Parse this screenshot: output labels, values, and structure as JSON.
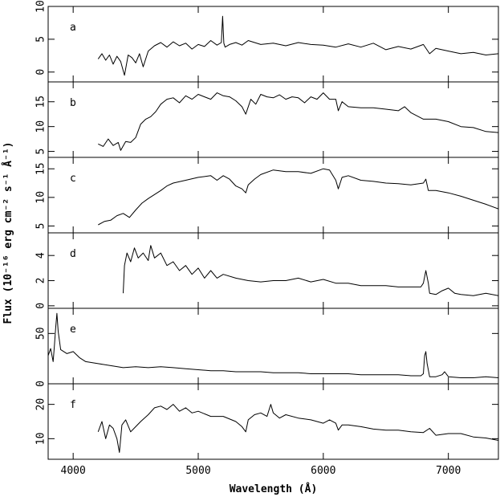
{
  "chart_data": {
    "type": "line",
    "xlabel": "Wavelength (Å)",
    "ylabel": "Flux (10⁻¹⁶ erg cm⁻² s⁻¹ Å⁻¹)",
    "xlim": [
      3800,
      7400
    ],
    "xticks": [
      {
        "value": 4000,
        "label": "4000"
      },
      {
        "value": 5000,
        "label": "5000"
      },
      {
        "value": 6000,
        "label": "6000"
      },
      {
        "value": 7000,
        "label": "7000"
      }
    ],
    "panels": [
      {
        "label": "a",
        "ylim": [
          -1.5,
          10
        ],
        "yticks": [
          {
            "value": 0,
            "label": "0"
          },
          {
            "value": 5,
            "label": "5"
          },
          {
            "value": 10,
            "label": "10"
          }
        ],
        "x": [
          4200,
          4230,
          4260,
          4290,
          4320,
          4350,
          4380,
          4410,
          4440,
          4470,
          4500,
          4530,
          4560,
          4600,
          4650,
          4700,
          4750,
          4800,
          4850,
          4900,
          4950,
          5000,
          5050,
          5100,
          5150,
          5185,
          5195,
          5205,
          5215,
          5250,
          5300,
          5350,
          5400,
          5500,
          5600,
          5700,
          5800,
          5900,
          6000,
          6100,
          6200,
          6300,
          6400,
          6500,
          6600,
          6700,
          6800,
          6850,
          6900,
          7000,
          7100,
          7200,
          7300,
          7400
        ],
        "y": [
          2,
          2.8,
          1.8,
          2.6,
          1.2,
          2.4,
          1.6,
          -0.5,
          2.6,
          2.2,
          1.4,
          2.8,
          0.8,
          3.2,
          4,
          4.5,
          3.8,
          4.6,
          4,
          4.4,
          3.5,
          4.2,
          3.9,
          4.8,
          4.1,
          4.5,
          8.5,
          4.4,
          3.8,
          4.2,
          4.5,
          4.1,
          4.8,
          4.2,
          4.4,
          4,
          4.5,
          4.2,
          4.1,
          3.8,
          4.3,
          3.8,
          4.4,
          3.4,
          3.9,
          3.5,
          4.2,
          2.8,
          3.6,
          3.2,
          2.8,
          3,
          2.6,
          2.8
        ]
      },
      {
        "label": "b",
        "ylim": [
          3.8,
          19
        ],
        "yticks": [
          {
            "value": 5,
            "label": "5"
          },
          {
            "value": 10,
            "label": "10"
          },
          {
            "value": 15,
            "label": "15"
          }
        ],
        "x": [
          4200,
          4240,
          4280,
          4320,
          4360,
          4380,
          4420,
          4460,
          4500,
          4540,
          4580,
          4620,
          4660,
          4700,
          4750,
          4800,
          4850,
          4900,
          4950,
          5000,
          5050,
          5100,
          5150,
          5200,
          5250,
          5300,
          5350,
          5380,
          5420,
          5460,
          5500,
          5550,
          5600,
          5650,
          5700,
          5750,
          5800,
          5850,
          5900,
          5950,
          6000,
          6050,
          6100,
          6120,
          6150,
          6200,
          6300,
          6400,
          6500,
          6600,
          6650,
          6700,
          6800,
          6900,
          7000,
          7100,
          7200,
          7300,
          7400
        ],
        "y": [
          6.5,
          6,
          7.5,
          6.2,
          6.8,
          5.2,
          7,
          6.8,
          7.8,
          10.5,
          11.5,
          12,
          13,
          14.5,
          15.5,
          15.8,
          14.8,
          16.2,
          15.5,
          16.5,
          16,
          15.5,
          16.8,
          16.2,
          16,
          15.2,
          14,
          12.5,
          15.5,
          14.5,
          16.5,
          16,
          15.8,
          16.4,
          15.5,
          16,
          15.8,
          14.8,
          16,
          15.5,
          16.8,
          15.5,
          15.5,
          13.2,
          15,
          14,
          13.8,
          13.8,
          13.5,
          13.2,
          14,
          12.8,
          11.5,
          11.5,
          11,
          10,
          9.8,
          9,
          8.8
        ]
      },
      {
        "label": "c",
        "ylim": [
          3.8,
          17
        ],
        "yticks": [
          {
            "value": 5,
            "label": "5"
          },
          {
            "value": 10,
            "label": "10"
          },
          {
            "value": 15,
            "label": "15"
          }
        ],
        "x": [
          4200,
          4250,
          4300,
          4350,
          4400,
          4450,
          4500,
          4550,
          4600,
          4650,
          4700,
          4750,
          4800,
          4900,
          5000,
          5100,
          5150,
          5200,
          5250,
          5300,
          5350,
          5380,
          5400,
          5450,
          5500,
          5600,
          5700,
          5800,
          5900,
          6000,
          6050,
          6100,
          6120,
          6150,
          6200,
          6300,
          6400,
          6500,
          6600,
          6700,
          6800,
          6820,
          6840,
          6900,
          7000,
          7100,
          7200,
          7300,
          7400
        ],
        "y": [
          5.2,
          5.8,
          6,
          6.8,
          7.2,
          6.5,
          7.8,
          9,
          9.8,
          10.5,
          11.2,
          12,
          12.5,
          13,
          13.5,
          13.8,
          13,
          13.8,
          13.2,
          12,
          11.5,
          10.8,
          12.2,
          13.2,
          14,
          14.8,
          14.5,
          14.5,
          14.2,
          15,
          14.8,
          13,
          11.5,
          13.5,
          13.8,
          13,
          12.8,
          12.5,
          12.4,
          12.2,
          12.5,
          13.2,
          11.2,
          11.2,
          10.8,
          10.2,
          9.5,
          8.8,
          8
        ]
      },
      {
        "label": "d",
        "ylim": [
          -0.2,
          5.8
        ],
        "yticks": [
          {
            "value": 0,
            "label": "0"
          },
          {
            "value": 2,
            "label": "2"
          },
          {
            "value": 4,
            "label": "4"
          }
        ],
        "x": [
          4400,
          4410,
          4430,
          4460,
          4490,
          4520,
          4560,
          4600,
          4620,
          4650,
          4700,
          4750,
          4800,
          4850,
          4900,
          4950,
          5000,
          5050,
          5100,
          5150,
          5200,
          5300,
          5400,
          5500,
          5600,
          5700,
          5800,
          5900,
          6000,
          6100,
          6200,
          6300,
          6400,
          6500,
          6600,
          6700,
          6780,
          6800,
          6820,
          6840,
          6850,
          6900,
          6950,
          7000,
          7050,
          7100,
          7200,
          7300,
          7400
        ],
        "y": [
          1,
          3.2,
          4.2,
          3.5,
          4.6,
          3.8,
          4.2,
          3.6,
          4.8,
          3.8,
          4.2,
          3.2,
          3.5,
          2.8,
          3.2,
          2.5,
          3,
          2.2,
          2.8,
          2.2,
          2.5,
          2.2,
          2,
          1.9,
          2,
          2,
          2.2,
          1.9,
          2.1,
          1.8,
          1.8,
          1.6,
          1.6,
          1.6,
          1.5,
          1.5,
          1.5,
          1.8,
          2.8,
          1.8,
          1,
          0.9,
          1.2,
          1.4,
          1,
          0.9,
          0.8,
          1,
          0.8
        ]
      },
      {
        "label": "e",
        "ylim": [
          0,
          75
        ],
        "yticks": [
          {
            "value": 0,
            "label": "0"
          },
          {
            "value": 50,
            "label": "50"
          }
        ],
        "x": [
          3800,
          3820,
          3840,
          3850,
          3860,
          3870,
          3880,
          3900,
          3950,
          4000,
          4050,
          4100,
          4200,
          4300,
          4400,
          4500,
          4600,
          4700,
          4800,
          4900,
          5000,
          5100,
          5200,
          5300,
          5400,
          5500,
          5600,
          5700,
          5800,
          5900,
          6000,
          6100,
          6200,
          6300,
          6400,
          6500,
          6600,
          6700,
          6780,
          6800,
          6810,
          6820,
          6830,
          6850,
          6900,
          6950,
          6970,
          7000,
          7100,
          7200,
          7300,
          7400
        ],
        "y": [
          28,
          35,
          22,
          38,
          55,
          70,
          52,
          34,
          30,
          32,
          26,
          22,
          20,
          18,
          16,
          17,
          16,
          17,
          16,
          15,
          14,
          13,
          13,
          12,
          12,
          12,
          11,
          11,
          11,
          10,
          10,
          10,
          10,
          9,
          9,
          9,
          9,
          8,
          8,
          10,
          28,
          32,
          20,
          7,
          7,
          9,
          12,
          7,
          6,
          6,
          7,
          6
        ]
      },
      {
        "label": "f",
        "ylim": [
          4,
          26
        ],
        "yticks": [
          {
            "value": 10,
            "label": "10"
          },
          {
            "value": 20,
            "label": "20"
          }
        ],
        "x": [
          4200,
          4230,
          4260,
          4290,
          4320,
          4350,
          4370,
          4390,
          4420,
          4460,
          4500,
          4540,
          4600,
          4650,
          4700,
          4750,
          4800,
          4850,
          4900,
          4950,
          5000,
          5100,
          5200,
          5300,
          5350,
          5380,
          5400,
          5450,
          5500,
          5550,
          5580,
          5600,
          5650,
          5700,
          5800,
          5900,
          6000,
          6050,
          6100,
          6120,
          6150,
          6200,
          6300,
          6400,
          6500,
          6600,
          6700,
          6800,
          6850,
          6900,
          7000,
          7100,
          7200,
          7300,
          7400
        ],
        "y": [
          12,
          15,
          10,
          14,
          13,
          10,
          6,
          14,
          15.5,
          12,
          13.5,
          15,
          17,
          19,
          19.5,
          18.5,
          20,
          18,
          19,
          17.5,
          18,
          16.5,
          16.5,
          15,
          13.5,
          12,
          15.5,
          17,
          17.5,
          16.5,
          20,
          17.5,
          16,
          17,
          16,
          15.5,
          14.5,
          15.5,
          14.5,
          12.5,
          14,
          14,
          13.5,
          12.8,
          12.5,
          12.5,
          12,
          11.8,
          13,
          11,
          11.5,
          11.5,
          10.5,
          10.2,
          9.5
        ]
      }
    ]
  }
}
